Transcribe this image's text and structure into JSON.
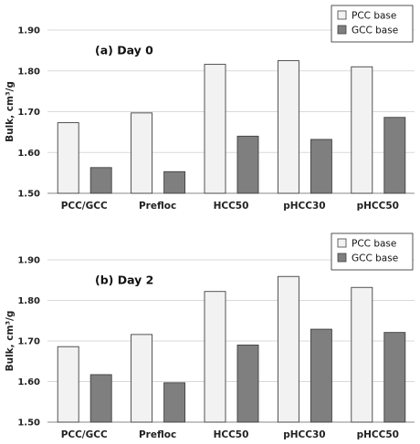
{
  "chart_data": [
    {
      "type": "bar",
      "title": "(a)  Day 0",
      "ylabel": "Bulk, cm³/g",
      "xlabel": "",
      "categories": [
        "PCC/GCC",
        "Prefloc",
        "HCC50",
        "pHCC30",
        "pHCC50"
      ],
      "series": [
        {
          "name": "PCC base",
          "color": "#f2f2f2",
          "values": [
            1.673,
            1.697,
            1.816,
            1.825,
            1.81
          ]
        },
        {
          "name": "GCC base",
          "color": "#7f7f7f",
          "values": [
            1.563,
            1.553,
            1.64,
            1.632,
            1.686
          ]
        }
      ],
      "ylim": [
        1.5,
        1.9
      ],
      "yticks": [
        "1.50",
        "1.60",
        "1.70",
        "1.80",
        "1.90"
      ],
      "grid": true,
      "legend": "top-right"
    },
    {
      "type": "bar",
      "title": "(b)  Day 2",
      "ylabel": "Bulk, cm³/g",
      "xlabel": "",
      "categories": [
        "PCC/GCC",
        "Prefloc",
        "HCC50",
        "pHCC30",
        "pHCC50"
      ],
      "series": [
        {
          "name": "PCC base",
          "color": "#f2f2f2",
          "values": [
            1.686,
            1.716,
            1.822,
            1.859,
            1.832
          ]
        },
        {
          "name": "GCC base",
          "color": "#7f7f7f",
          "values": [
            1.617,
            1.597,
            1.69,
            1.729,
            1.721
          ]
        }
      ],
      "ylim": [
        1.5,
        1.9
      ],
      "yticks": [
        "1.50",
        "1.60",
        "1.70",
        "1.80",
        "1.90"
      ],
      "grid": true,
      "legend": "top-right"
    }
  ]
}
